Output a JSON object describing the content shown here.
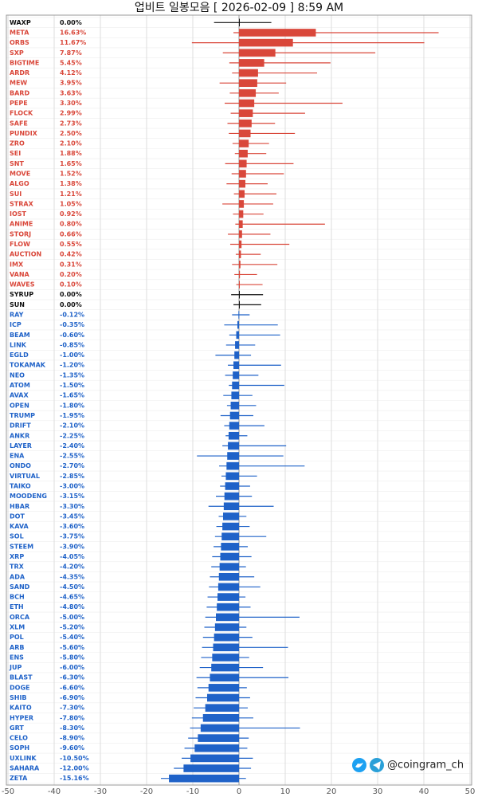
{
  "chart_data": {
    "type": "range-bar",
    "title": "업비트 일봉모음 [ 2026-02-09 ]  8:59 AM",
    "watermark": "@coingram_ch",
    "up_color": "#d9473a",
    "down_color": "#1f62c8",
    "flat_color": "#111111",
    "xlim": [
      -50,
      50
    ],
    "xticks": [
      -50,
      -40,
      -30,
      -20,
      -10,
      0,
      10,
      20,
      30,
      40,
      50
    ],
    "grid": true,
    "categories": [
      "WAXP",
      "META",
      "ORBS",
      "SXP",
      "BIGTIME",
      "ARDR",
      "MEW",
      "BARD",
      "PEPE",
      "FLOCK",
      "SAFE",
      "PUNDIX",
      "ZRO",
      "SEI",
      "SNT",
      "MOVE",
      "ALGO",
      "SUI",
      "STRAX",
      "IOST",
      "ANIME",
      "STORJ",
      "FLOW",
      "AUCTION",
      "IMX",
      "VANA",
      "WAVES",
      "SYRUP",
      "SUN",
      "RAY",
      "ICP",
      "BEAM",
      "LINK",
      "EGLD",
      "TOKAMAK",
      "NEO",
      "ATOM",
      "AVAX",
      "OPEN",
      "TRUMP",
      "DRIFT",
      "ANKR",
      "LAYER",
      "ENA",
      "ONDO",
      "VIRTUAL",
      "TAIKO",
      "MOODENG",
      "HBAR",
      "DOT",
      "KAVA",
      "SOL",
      "STEEM",
      "XRP",
      "TRX",
      "ADA",
      "SAND",
      "BCH",
      "ETH",
      "ORCA",
      "XLM",
      "POL",
      "ARB",
      "ENS",
      "JUP",
      "BLAST",
      "DOGE",
      "SHIB",
      "KAITO",
      "HYPER",
      "GRT",
      "CELO",
      "SOPH",
      "UXLINK",
      "SAHARA",
      "ZETA"
    ],
    "values": [
      0,
      16.63,
      11.67,
      7.87,
      5.45,
      4.12,
      3.95,
      3.63,
      3.3,
      2.99,
      2.73,
      2.5,
      2.1,
      1.88,
      1.65,
      1.52,
      1.38,
      1.21,
      1.05,
      0.92,
      0.8,
      0.66,
      0.55,
      0.42,
      0.31,
      0.2,
      0.1,
      0,
      0,
      -0.12,
      -0.35,
      -0.6,
      -0.85,
      -1.0,
      -1.2,
      -1.35,
      -1.5,
      -1.65,
      -1.8,
      -1.95,
      -2.1,
      -2.25,
      -2.4,
      -2.55,
      -2.7,
      -2.85,
      -3.0,
      -3.15,
      -3.3,
      -3.45,
      -3.6,
      -3.75,
      -3.9,
      -4.05,
      -4.2,
      -4.35,
      -4.5,
      -4.65,
      -4.8,
      -5.0,
      -5.2,
      -5.4,
      -5.6,
      -5.8,
      -6.0,
      -6.3,
      -6.6,
      -6.9,
      -7.3,
      -7.8,
      -8.3,
      -8.9,
      -9.6,
      -10.5,
      -12.0,
      -15.16
    ],
    "value_labels": [
      "0.00%",
      "16.63%",
      "11.67%",
      "7.87%",
      "5.45%",
      "4.12%",
      "3.95%",
      "3.63%",
      "3.30%",
      "2.99%",
      "2.73%",
      "2.50%",
      "2.10%",
      "1.88%",
      "1.65%",
      "1.52%",
      "1.38%",
      "1.21%",
      "1.05%",
      "0.92%",
      "0.80%",
      "0.66%",
      "0.55%",
      "0.42%",
      "0.31%",
      "0.20%",
      "0.10%",
      "0.00%",
      "0.00%",
      "-0.12%",
      "-0.35%",
      "-0.60%",
      "-0.85%",
      "-1.00%",
      "-1.20%",
      "-1.35%",
      "-1.50%",
      "-1.65%",
      "-1.80%",
      "-1.95%",
      "-2.10%",
      "-2.25%",
      "-2.40%",
      "-2.55%",
      "-2.70%",
      "-2.85%",
      "-3.00%",
      "-3.15%",
      "-3.30%",
      "-3.45%",
      "-3.60%",
      "-3.75%",
      "-3.90%",
      "-4.05%",
      "-4.20%",
      "-4.35%",
      "-4.50%",
      "-4.65%",
      "-4.80%",
      "-5.00%",
      "-5.20%",
      "-5.40%",
      "-5.60%",
      "-5.80%",
      "-6.00%",
      "-6.30%",
      "-6.60%",
      "-6.90%",
      "-7.30%",
      "-7.80%",
      "-8.30%",
      "-8.90%",
      "-9.60%",
      "-10.50%",
      "-12.00%",
      "-15.16%"
    ],
    "low": [
      -5.4,
      -1.2,
      -10.2,
      -3.5,
      -2.1,
      -1.5,
      -4.2,
      -2.0,
      -3.1,
      -1.8,
      -2.5,
      -2.2,
      -1.4,
      -0.9,
      -3.0,
      -1.6,
      -2.7,
      -1.1,
      -3.6,
      -1.3,
      -0.8,
      -2.4,
      -1.9,
      -0.7,
      -1.5,
      -1.0,
      -0.6,
      -1.7,
      -1.2,
      -1.5,
      -3.2,
      -2.1,
      -2.8,
      -5.1,
      -2.4,
      -3.0,
      -2.2,
      -3.4,
      -2.6,
      -4.0,
      -3.2,
      -2.9,
      -3.6,
      -9.1,
      -4.3,
      -3.8,
      -4.1,
      -5.0,
      -6.6,
      -4.4,
      -4.9,
      -5.2,
      -5.5,
      -5.8,
      -6.0,
      -6.3,
      -6.5,
      -6.8,
      -7.0,
      -7.3,
      -7.5,
      -7.8,
      -8.0,
      -8.2,
      -8.5,
      -9.2,
      -9.0,
      -9.4,
      -9.8,
      -10.2,
      -10.6,
      -11.0,
      -11.8,
      -12.4,
      -14.1,
      -16.9
    ],
    "high": [
      7.0,
      43.2,
      40.1,
      29.5,
      19.8,
      16.9,
      10.2,
      8.6,
      22.4,
      14.3,
      7.8,
      12.1,
      6.5,
      5.9,
      11.8,
      9.7,
      6.2,
      8.1,
      7.4,
      5.3,
      18.6,
      6.8,
      10.9,
      4.7,
      8.3,
      3.9,
      5.1,
      5.2,
      4.8,
      2.3,
      8.4,
      8.9,
      3.5,
      2.6,
      9.1,
      4.2,
      9.8,
      2.9,
      3.7,
      3.1,
      5.5,
      1.8,
      10.2,
      9.6,
      14.2,
      3.9,
      2.4,
      2.8,
      7.5,
      1.6,
      2.3,
      5.9,
      1.9,
      2.7,
      1.5,
      3.3,
      4.6,
      1.4,
      2.5,
      13.1,
      1.6,
      2.9,
      10.6,
      2.2,
      5.2,
      10.7,
      1.7,
      2.4,
      1.9,
      3.1,
      13.2,
      2.1,
      1.8,
      3.0,
      2.6,
      1.5
    ]
  }
}
